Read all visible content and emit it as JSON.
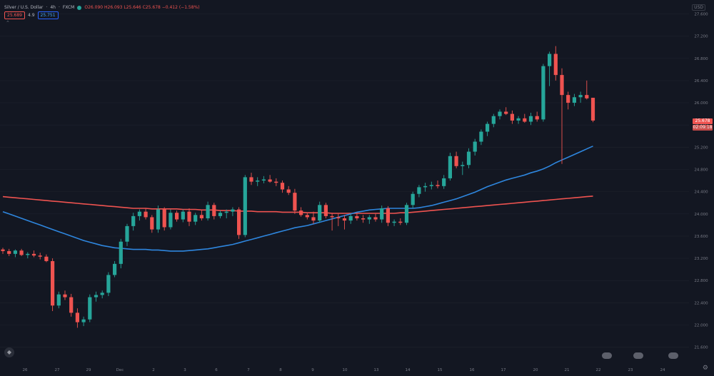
{
  "header": {
    "symbol": "Silver / U.S. Dollar",
    "interval": "4h",
    "exchange": "FXCM",
    "ohlc": "O26.090 H26.093 L25.646 C25.678 −0.412 (−1.58%)",
    "ind1_value": "25.689",
    "ind_mid": "4.9",
    "ind2_value": "25.751",
    "currency": "USD"
  },
  "price_labels": [
    "25.678",
    "02:09:18"
  ],
  "colors": {
    "bg": "#131722",
    "up": "#26a69a",
    "down": "#ef5350",
    "ma_fast": "#2e86de",
    "ma_slow": "#ef5350",
    "grid": "#1e222d",
    "text": "#787b86"
  },
  "chart_data": {
    "type": "candlestick",
    "ylim": [
      21.3,
      27.85
    ],
    "y_ticks": [
      "27.600",
      "27.200",
      "26.800",
      "26.400",
      "26.000",
      "25.600",
      "25.200",
      "24.800",
      "24.400",
      "24.000",
      "23.600",
      "23.200",
      "22.800",
      "22.400",
      "22.000",
      "21.600"
    ],
    "x_ticks": [
      "26",
      "27",
      "29",
      "Dec",
      "2",
      "3",
      "6",
      "7",
      "8",
      "9",
      "10",
      "13",
      "14",
      "15",
      "16",
      "17",
      "20",
      "21",
      "22",
      "23",
      "24"
    ],
    "candles": [
      [
        23.36,
        23.39,
        23.28,
        23.33
      ],
      [
        23.33,
        23.37,
        23.24,
        23.28
      ],
      [
        23.28,
        23.36,
        23.22,
        23.34
      ],
      [
        23.34,
        23.37,
        23.24,
        23.26
      ],
      [
        23.26,
        23.31,
        23.2,
        23.28
      ],
      [
        23.28,
        23.34,
        23.22,
        23.25
      ],
      [
        23.25,
        23.3,
        23.18,
        23.23
      ],
      [
        23.23,
        23.27,
        23.13,
        23.15
      ],
      [
        23.15,
        23.2,
        22.25,
        22.35
      ],
      [
        22.35,
        22.6,
        22.3,
        22.55
      ],
      [
        22.55,
        22.62,
        22.45,
        22.5
      ],
      [
        22.5,
        22.56,
        22.15,
        22.22
      ],
      [
        22.22,
        22.3,
        21.95,
        22.05
      ],
      [
        22.05,
        22.15,
        21.98,
        22.1
      ],
      [
        22.1,
        22.55,
        22.05,
        22.5
      ],
      [
        22.5,
        22.6,
        22.42,
        22.54
      ],
      [
        22.54,
        22.62,
        22.48,
        22.58
      ],
      [
        22.58,
        22.95,
        22.52,
        22.9
      ],
      [
        22.9,
        23.15,
        22.86,
        23.1
      ],
      [
        23.1,
        23.55,
        23.02,
        23.5
      ],
      [
        23.5,
        23.82,
        23.42,
        23.78
      ],
      [
        23.78,
        24.02,
        23.7,
        23.96
      ],
      [
        23.96,
        24.08,
        23.88,
        24.04
      ],
      [
        24.04,
        24.1,
        23.9,
        23.94
      ],
      [
        23.94,
        23.98,
        23.66,
        23.72
      ],
      [
        23.72,
        24.15,
        23.66,
        24.08
      ],
      [
        24.08,
        24.12,
        23.7,
        23.76
      ],
      [
        23.76,
        24.08,
        23.72,
        24.02
      ],
      [
        24.02,
        24.06,
        23.86,
        23.9
      ],
      [
        23.9,
        24.08,
        23.85,
        24.04
      ],
      [
        24.04,
        24.1,
        23.78,
        23.86
      ],
      [
        23.86,
        24.02,
        23.8,
        23.98
      ],
      [
        23.98,
        24.06,
        23.88,
        23.92
      ],
      [
        23.92,
        24.22,
        23.88,
        24.16
      ],
      [
        24.16,
        24.2,
        23.9,
        23.96
      ],
      [
        23.96,
        24.06,
        23.92,
        24.02
      ],
      [
        24.02,
        24.08,
        23.92,
        24.04
      ],
      [
        24.04,
        24.12,
        23.96,
        24.08
      ],
      [
        24.08,
        24.12,
        23.55,
        23.62
      ],
      [
        23.62,
        24.7,
        23.58,
        24.66
      ],
      [
        24.66,
        24.74,
        24.52,
        24.58
      ],
      [
        24.58,
        24.66,
        24.5,
        24.6
      ],
      [
        24.6,
        24.68,
        24.55,
        24.62
      ],
      [
        24.62,
        24.7,
        24.56,
        24.58
      ],
      [
        24.58,
        24.64,
        24.5,
        24.56
      ],
      [
        24.56,
        24.6,
        24.38,
        24.44
      ],
      [
        24.44,
        24.5,
        24.34,
        24.38
      ],
      [
        24.38,
        24.45,
        24.0,
        24.06
      ],
      [
        24.06,
        24.12,
        23.95,
        23.98
      ],
      [
        23.98,
        24.02,
        23.9,
        23.94
      ],
      [
        23.94,
        24.04,
        23.82,
        23.88
      ],
      [
        23.88,
        24.22,
        23.84,
        24.16
      ],
      [
        24.16,
        24.2,
        23.92,
        23.96
      ],
      [
        23.96,
        24.02,
        23.7,
        23.94
      ],
      [
        23.94,
        24.0,
        23.78,
        23.92
      ],
      [
        23.92,
        23.98,
        23.72,
        23.88
      ],
      [
        23.88,
        24.0,
        23.82,
        23.96
      ],
      [
        23.96,
        24.02,
        23.88,
        23.92
      ],
      [
        23.92,
        23.98,
        23.84,
        23.9
      ],
      [
        23.9,
        23.98,
        23.82,
        23.94
      ],
      [
        23.94,
        24.0,
        23.86,
        23.9
      ],
      [
        23.9,
        24.15,
        23.84,
        24.1
      ],
      [
        24.1,
        24.14,
        23.78,
        23.84
      ],
      [
        23.84,
        23.9,
        23.78,
        23.86
      ],
      [
        23.86,
        23.92,
        23.8,
        23.84
      ],
      [
        23.84,
        24.2,
        23.8,
        24.16
      ],
      [
        24.16,
        24.4,
        24.1,
        24.36
      ],
      [
        24.36,
        24.52,
        24.3,
        24.48
      ],
      [
        24.48,
        24.56,
        24.4,
        24.5
      ],
      [
        24.5,
        24.58,
        24.44,
        24.52
      ],
      [
        24.52,
        24.6,
        24.46,
        24.5
      ],
      [
        24.5,
        24.7,
        24.45,
        24.64
      ],
      [
        24.64,
        25.1,
        24.6,
        25.04
      ],
      [
        25.04,
        25.12,
        24.82,
        24.86
      ],
      [
        24.86,
        24.94,
        24.7,
        24.88
      ],
      [
        24.88,
        25.18,
        24.82,
        25.12
      ],
      [
        25.12,
        25.35,
        25.05,
        25.3
      ],
      [
        25.3,
        25.52,
        25.24,
        25.48
      ],
      [
        25.48,
        25.66,
        25.4,
        25.62
      ],
      [
        25.62,
        25.8,
        25.56,
        25.76
      ],
      [
        25.76,
        25.88,
        25.7,
        25.84
      ],
      [
        25.84,
        25.92,
        25.78,
        25.8
      ],
      [
        25.8,
        25.86,
        25.62,
        25.68
      ],
      [
        25.68,
        25.76,
        25.62,
        25.72
      ],
      [
        25.72,
        25.8,
        25.64,
        25.66
      ],
      [
        25.66,
        25.82,
        25.6,
        25.76
      ],
      [
        25.76,
        25.84,
        25.66,
        25.7
      ],
      [
        25.7,
        26.7,
        25.66,
        26.66
      ],
      [
        26.66,
        26.92,
        26.3,
        26.88
      ],
      [
        26.88,
        27.02,
        26.4,
        26.5
      ],
      [
        26.5,
        26.62,
        24.9,
        26.14
      ],
      [
        26.14,
        26.2,
        25.88,
        26.0
      ],
      [
        26.0,
        26.16,
        25.94,
        26.1
      ],
      [
        26.1,
        26.2,
        26.0,
        26.14
      ],
      [
        26.14,
        26.4,
        26.06,
        26.08
      ],
      [
        26.09,
        26.09,
        25.65,
        25.68
      ]
    ],
    "ma_fast": [
      24.04,
      24.0,
      23.96,
      23.92,
      23.88,
      23.84,
      23.8,
      23.76,
      23.72,
      23.68,
      23.64,
      23.6,
      23.56,
      23.52,
      23.49,
      23.46,
      23.43,
      23.41,
      23.39,
      23.38,
      23.37,
      23.36,
      23.36,
      23.36,
      23.35,
      23.35,
      23.34,
      23.33,
      23.33,
      23.33,
      23.34,
      23.35,
      23.36,
      23.37,
      23.39,
      23.41,
      23.43,
      23.45,
      23.48,
      23.51,
      23.54,
      23.57,
      23.6,
      23.63,
      23.66,
      23.69,
      23.72,
      23.75,
      23.77,
      23.79,
      23.82,
      23.85,
      23.88,
      23.91,
      23.94,
      23.97,
      24.0,
      24.03,
      24.05,
      24.07,
      24.08,
      24.09,
      24.1,
      24.1,
      24.1,
      24.1,
      24.1,
      24.11,
      24.13,
      24.15,
      24.18,
      24.21,
      24.24,
      24.27,
      24.31,
      24.35,
      24.39,
      24.44,
      24.49,
      24.53,
      24.57,
      24.61,
      24.64,
      24.67,
      24.7,
      24.74,
      24.77,
      24.81,
      24.86,
      24.92,
      24.97,
      25.02,
      25.07,
      25.12,
      25.17,
      25.22
    ],
    "ma_slow": [
      24.31,
      24.3,
      24.29,
      24.28,
      24.27,
      24.26,
      24.25,
      24.24,
      24.23,
      24.22,
      24.21,
      24.2,
      24.19,
      24.18,
      24.17,
      24.16,
      24.15,
      24.14,
      24.13,
      24.12,
      24.11,
      24.1,
      24.1,
      24.1,
      24.09,
      24.09,
      24.09,
      24.09,
      24.09,
      24.08,
      24.08,
      24.08,
      24.07,
      24.07,
      24.07,
      24.06,
      24.06,
      24.06,
      24.05,
      24.05,
      24.05,
      24.04,
      24.04,
      24.04,
      24.04,
      24.03,
      24.03,
      24.03,
      24.03,
      24.02,
      24.02,
      24.02,
      24.02,
      24.01,
      24.01,
      24.01,
      24.01,
      24.01,
      24.01,
      24.01,
      24.01,
      24.01,
      24.01,
      24.01,
      24.02,
      24.02,
      24.03,
      24.04,
      24.05,
      24.06,
      24.07,
      24.08,
      24.09,
      24.1,
      24.11,
      24.12,
      24.13,
      24.14,
      24.15,
      24.16,
      24.17,
      24.18,
      24.19,
      24.2,
      24.21,
      24.22,
      24.23,
      24.24,
      24.25,
      24.26,
      24.27,
      24.28,
      24.29,
      24.3,
      24.31,
      24.32
    ]
  }
}
